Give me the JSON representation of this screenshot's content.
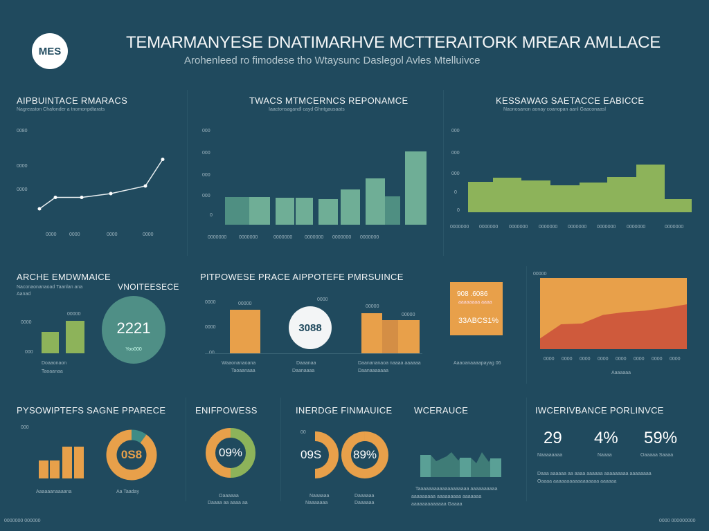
{
  "header": {
    "logo": "MES",
    "title": "TEMARMANYESE DNATIMARHVE MCTTERAITORK MREAR AMLLACE",
    "subtitle": "Arohenleed ro fimodese tho Wtaysunc Daslegol Avles Mtelluivce"
  },
  "colors": {
    "background": "#204a5e",
    "green": "#8db35a",
    "teal": "#6fae96",
    "orange": "#e8a04a",
    "red": "#cf5a3c"
  },
  "panels": {
    "p1": {
      "title": "AIPBUINTACE RMARACS",
      "sub": "Nagreaston Chafonder a tnomonpdtarats",
      "yticks": [
        "0080",
        "0000",
        "0000"
      ],
      "xticks": [
        "0000",
        "0000",
        "0000",
        "0000"
      ],
      "values": [
        2,
        5,
        5,
        6,
        8,
        15
      ]
    },
    "p2": {
      "title": "TWACS MTMCERNCS REPONAMCE",
      "sub": "Iaactonsagandl cayd Ghntgausaats",
      "yticks": [
        "000",
        "000",
        "000",
        "000",
        "0"
      ],
      "xticks": [
        "0000000",
        "0000000",
        "0000000",
        "0000000",
        "0000000",
        "0000000"
      ],
      "values": [
        40,
        40,
        39,
        39,
        37,
        51,
        67,
        41,
        106
      ]
    },
    "p3": {
      "title": "KESSAWAG SAETACCE EABICCE",
      "sub": "Naonosanon aonay coanopan aanl Gaaconaasl",
      "yticks": [
        "000",
        "000",
        "000",
        "0",
        "0"
      ],
      "xticks": [
        "0000000",
        "0000000",
        "0000000",
        "0000000",
        "0000000",
        "0000000",
        "0000000",
        "0000000"
      ],
      "values": [
        44,
        50,
        46,
        39,
        43,
        51,
        69,
        19
      ]
    },
    "p4": {
      "title": "ARCHE EMDWMAICE",
      "sub": "Naconaonanaoad Taanlan ana",
      "sub2": "Aanad",
      "tag": "VNOITEESECE",
      "yticks": [
        "0000",
        "000"
      ],
      "bar_label": "00000",
      "values": [
        31,
        47
      ],
      "circle_value": "2221",
      "circle_label": "Yoo000",
      "captions": [
        "Doaaonaon",
        "Taoaanaa"
      ]
    },
    "p5": {
      "title": "PITPOWESE PRACE AIPPOTEFE PMRSUINCE",
      "yticks": [
        "0000",
        "0000",
        "00"
      ],
      "bar_labels": [
        "00000",
        "0000",
        "00000",
        "00000"
      ],
      "circle_value": "3088",
      "values": [
        63,
        58,
        48,
        48
      ],
      "captions": [
        "Waaonanaoana",
        "Taoaanaaa",
        "Daaanaa",
        "Daanaaaa",
        "Daanananaoa naaaa aaaaaa",
        "Daanaaaaaaa"
      ],
      "box_value1": "908 .6086",
      "box_sub": "aaaaaaaa aaaa",
      "box_value2": "33ABCS1%",
      "box_caption": "Aaaoanaaaapayag 06"
    },
    "p6": {
      "ylabel": "00000",
      "xticks": [
        "0000",
        "0000",
        "0000",
        "0000",
        "0000",
        "0000",
        "0000",
        "0000"
      ],
      "xlabel": "Aaaaaaa",
      "series": [
        {
          "name": "orange",
          "values": [
            100,
            100,
            100,
            100,
            100,
            100,
            100,
            100
          ]
        },
        {
          "name": "red",
          "values": [
            15,
            35,
            36,
            48,
            52,
            54,
            58,
            63
          ]
        }
      ]
    },
    "p7": {
      "title": "PYSOWIPTEFS SAGNE PPARECE",
      "ytick": "000",
      "values": [
        26,
        26,
        46,
        46
      ],
      "donut_value": "0S8",
      "donut_fraction": 0.1,
      "captions": [
        "Aaaaaanaaaana",
        "Aa Taaday"
      ]
    },
    "p8": {
      "title": "ENIFPOWESS",
      "donut_value": "09%",
      "donut_fraction": 0.5,
      "captions": [
        "Oaaaaaa",
        "Daaaa aa aaaa aa"
      ]
    },
    "p9": {
      "title": "INERDGE FINMAUICE",
      "ytick": "00",
      "value1": "09S",
      "value2": "89%",
      "captions": [
        "Naaaaaa",
        "Naaaaaaa",
        "Daaaaaa",
        "Daaaaaa"
      ]
    },
    "p10": {
      "title": "WCERAUCE",
      "captions": [
        "Taaaaaaaaaaaaaaaaaaa aaaaaaaaaa",
        "aaaaaaaaa aaaaaaaaa aaaaaaa",
        "aaaaaaaaaaaaa Gaaaa"
      ]
    },
    "p11": {
      "title": "IWCERIVBANCE PORLINVCE",
      "stats": [
        {
          "value": "29",
          "label": "Naaaaaaaa"
        },
        {
          "value": "4%",
          "label": "Naaaa"
        },
        {
          "value": "59%",
          "label": "Oaaaaa Saaaa"
        }
      ],
      "notes": [
        "Daaa aaaaaa aa aaaa aaaaaa aaaaaaaaa aaaaaaaa",
        "Oaaaa aaaaaaaaaaaaaaaaa aaaaaa"
      ]
    }
  },
  "footer": {
    "left": "0000000 000000",
    "right": "0000 000000000"
  }
}
